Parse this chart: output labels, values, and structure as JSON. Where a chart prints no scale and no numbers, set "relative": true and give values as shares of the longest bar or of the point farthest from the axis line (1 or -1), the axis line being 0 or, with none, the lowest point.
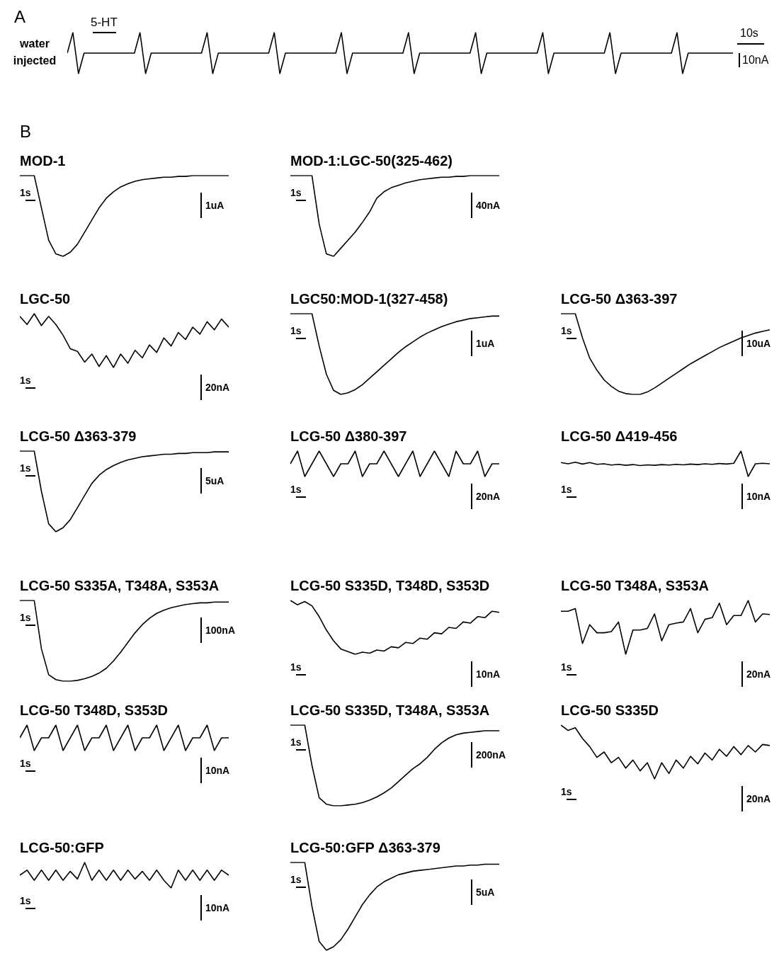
{
  "chart_data": [
    {
      "type": "line",
      "relative": true,
      "color": "#000000",
      "annotations": [
        "A",
        "water injected",
        "5-HT",
        "10s",
        "10nA"
      ],
      "categories": [
        null,
        null,
        null,
        null,
        null,
        null,
        null,
        null,
        null,
        null,
        null,
        null,
        null,
        null,
        null,
        null,
        null,
        null,
        null,
        null,
        null,
        null,
        null,
        null,
        null,
        null,
        null,
        null,
        null,
        null,
        null,
        null,
        null,
        null,
        null,
        null,
        null,
        null,
        null,
        null,
        null,
        null,
        null,
        null,
        null,
        null,
        null,
        null,
        null,
        null,
        null,
        null,
        null,
        null,
        null,
        null,
        null,
        null,
        null,
        null,
        null,
        null,
        null,
        null,
        null,
        null,
        null,
        null,
        null,
        null,
        null,
        null,
        null,
        null,
        null,
        null,
        null,
        null,
        null,
        null,
        null,
        null,
        null,
        null,
        null,
        null,
        null,
        null,
        null,
        null,
        null,
        null,
        null,
        null,
        null,
        null,
        null,
        null,
        null,
        null,
        null,
        null,
        null,
        null,
        null,
        null,
        null,
        null,
        null,
        null,
        null,
        null,
        null,
        null,
        null,
        null,
        null,
        null,
        null,
        null
      ],
      "values": [
        0.5,
        1,
        0,
        0.5,
        0.5,
        0.5,
        0.5,
        0.5,
        0.5,
        0.5,
        0.5,
        0.5,
        0.5,
        1,
        0,
        0.5,
        0.5,
        0.5,
        0.5,
        0.5,
        0.5,
        0.5,
        0.5,
        0.5,
        0.5,
        1,
        0,
        0.5,
        0.5,
        0.5,
        0.5,
        0.5,
        0.5,
        0.5,
        0.5,
        0.5,
        0.5,
        1,
        0,
        0.5,
        0.5,
        0.5,
        0.5,
        0.5,
        0.5,
        0.5,
        0.5,
        0.5,
        0.5,
        1,
        0,
        0.5,
        0.5,
        0.5,
        0.5,
        0.5,
        0.5,
        0.5,
        0.5,
        0.5,
        0.5,
        1,
        0,
        0.5,
        0.5,
        0.5,
        0.5,
        0.5,
        0.5,
        0.5,
        0.5,
        0.5,
        0.5,
        1,
        0,
        0.5,
        0.5,
        0.5,
        0.5,
        0.5,
        0.5,
        0.5,
        0.5,
        0.5,
        0.5,
        1,
        0,
        0.5,
        0.5,
        0.5,
        0.5,
        0.5,
        0.5,
        0.5,
        0.5,
        0.5,
        0.5,
        1,
        0,
        0.5,
        0.5,
        0.5,
        0.5,
        0.5,
        0.5,
        0.5,
        0.5,
        0.5,
        0.5,
        1,
        0,
        0.5,
        0.5,
        0.5,
        0.5,
        0.5,
        0.5,
        0.5,
        0.5,
        0.5
      ]
    },
    {
      "type": "line",
      "relative": true,
      "color": "#000000",
      "title": "MOD-1",
      "annotations": [
        "1s",
        "1uA",
        "B"
      ],
      "categories": [
        null,
        null,
        null,
        null,
        null,
        null,
        null,
        null,
        null,
        null,
        null,
        null,
        null,
        null,
        null,
        null,
        null,
        null,
        null,
        null,
        null,
        null,
        null,
        null,
        null,
        null,
        null,
        null,
        null,
        null
      ],
      "values": [
        1,
        1,
        1,
        0.6,
        0.2,
        0.03,
        0,
        0.05,
        0.15,
        0.3,
        0.45,
        0.6,
        0.72,
        0.8,
        0.86,
        0.9,
        0.93,
        0.95,
        0.96,
        0.97,
        0.98,
        0.98,
        0.99,
        0.99,
        1,
        1,
        1,
        1,
        1,
        1
      ]
    },
    {
      "type": "line",
      "relative": true,
      "color": "#000000",
      "title": "MOD-1:LGC-50(325-462)",
      "annotations": [
        "1s",
        "40nA"
      ],
      "categories": [
        null,
        null,
        null,
        null,
        null,
        null,
        null,
        null,
        null,
        null,
        null,
        null,
        null,
        null,
        null,
        null,
        null,
        null,
        null,
        null,
        null,
        null,
        null,
        null,
        null,
        null,
        null,
        null,
        null,
        null
      ],
      "values": [
        1,
        1,
        1,
        1,
        0.4,
        0.03,
        0,
        0.1,
        0.2,
        0.3,
        0.42,
        0.55,
        0.72,
        0.8,
        0.85,
        0.88,
        0.91,
        0.93,
        0.95,
        0.96,
        0.97,
        0.98,
        0.98,
        0.99,
        0.99,
        1,
        1,
        1,
        1,
        1
      ]
    },
    {
      "type": "line",
      "relative": true,
      "color": "#000000",
      "title": "LGC-50",
      "annotations": [
        "1s",
        "20nA"
      ],
      "categories": [
        null,
        null,
        null,
        null,
        null,
        null,
        null,
        null,
        null,
        null,
        null,
        null,
        null,
        null,
        null,
        null,
        null,
        null,
        null,
        null,
        null,
        null,
        null,
        null,
        null,
        null,
        null,
        null,
        null,
        null
      ],
      "values": [
        0.95,
        0.8,
        1,
        0.78,
        0.95,
        0.8,
        0.6,
        0.35,
        0.3,
        0.1,
        0.25,
        0.02,
        0.22,
        0,
        0.25,
        0.08,
        0.32,
        0.18,
        0.42,
        0.28,
        0.55,
        0.4,
        0.65,
        0.52,
        0.75,
        0.62,
        0.85,
        0.7,
        0.9,
        0.75
      ]
    },
    {
      "type": "line",
      "relative": true,
      "color": "#000000",
      "title": "LGC50:MOD-1(327-458)",
      "annotations": [
        "1s",
        "1uA"
      ],
      "categories": [
        null,
        null,
        null,
        null,
        null,
        null,
        null,
        null,
        null,
        null,
        null,
        null,
        null,
        null,
        null,
        null,
        null,
        null,
        null,
        null,
        null,
        null,
        null,
        null,
        null,
        null,
        null,
        null,
        null,
        null
      ],
      "values": [
        1,
        1,
        1,
        1,
        0.6,
        0.25,
        0.05,
        0,
        0.02,
        0.06,
        0.12,
        0.2,
        0.28,
        0.36,
        0.44,
        0.52,
        0.59,
        0.65,
        0.71,
        0.76,
        0.8,
        0.84,
        0.87,
        0.9,
        0.92,
        0.94,
        0.95,
        0.96,
        0.97,
        0.97
      ]
    },
    {
      "type": "line",
      "relative": true,
      "color": "#000000",
      "title": "LCG-50 Δ363-397",
      "annotations": [
        "1s",
        "10uA"
      ],
      "categories": [
        null,
        null,
        null,
        null,
        null,
        null,
        null,
        null,
        null,
        null,
        null,
        null,
        null,
        null,
        null,
        null,
        null,
        null,
        null,
        null,
        null,
        null,
        null,
        null,
        null,
        null,
        null,
        null,
        null,
        null
      ],
      "values": [
        1,
        1,
        1,
        0.7,
        0.45,
        0.3,
        0.18,
        0.1,
        0.04,
        0.01,
        0,
        0,
        0.03,
        0.08,
        0.14,
        0.2,
        0.26,
        0.32,
        0.38,
        0.43,
        0.48,
        0.53,
        0.58,
        0.62,
        0.66,
        0.7,
        0.73,
        0.76,
        0.78,
        0.8
      ]
    },
    {
      "type": "line",
      "relative": true,
      "color": "#000000",
      "title": "LCG-50 Δ363-379",
      "annotations": [
        "1s",
        "5uA"
      ],
      "categories": [
        null,
        null,
        null,
        null,
        null,
        null,
        null,
        null,
        null,
        null,
        null,
        null,
        null,
        null,
        null,
        null,
        null,
        null,
        null,
        null,
        null,
        null,
        null,
        null,
        null,
        null,
        null,
        null,
        null,
        null
      ],
      "values": [
        1,
        1,
        1,
        0.5,
        0.1,
        0,
        0.05,
        0.15,
        0.3,
        0.45,
        0.6,
        0.7,
        0.77,
        0.82,
        0.86,
        0.89,
        0.91,
        0.93,
        0.94,
        0.95,
        0.96,
        0.96,
        0.97,
        0.97,
        0.98,
        0.98,
        0.98,
        0.99,
        0.99,
        0.99
      ]
    },
    {
      "type": "line",
      "relative": true,
      "color": "#000000",
      "title": "LCG-50 Δ380-397",
      "annotations": [
        "1s",
        "20nA"
      ],
      "categories": [
        null,
        null,
        null,
        null,
        null,
        null,
        null,
        null,
        null,
        null,
        null,
        null,
        null,
        null,
        null,
        null,
        null,
        null,
        null,
        null,
        null,
        null,
        null,
        null,
        null,
        null,
        null,
        null,
        null,
        null
      ],
      "values": [
        0.5,
        1,
        0,
        0.5,
        1,
        0.5,
        0,
        0.5,
        0.5,
        1,
        0,
        0.5,
        0.5,
        1,
        0.5,
        0,
        0.5,
        1,
        0,
        0.5,
        1,
        0.5,
        0,
        1,
        0.5,
        0.5,
        1,
        0,
        0.5,
        0.5
      ]
    },
    {
      "type": "line",
      "relative": true,
      "color": "#000000",
      "title": "LCG-50 Δ419-456",
      "annotations": [
        "1s",
        "10nA"
      ],
      "categories": [
        null,
        null,
        null,
        null,
        null,
        null,
        null,
        null,
        null,
        null,
        null,
        null,
        null,
        null,
        null,
        null,
        null,
        null,
        null,
        null,
        null,
        null,
        null,
        null,
        null,
        null,
        null,
        null,
        null,
        null
      ],
      "values": [
        0.55,
        0.5,
        0.56,
        0.49,
        0.55,
        0.48,
        0.5,
        0.45,
        0.48,
        0.44,
        0.47,
        0.43,
        0.46,
        0.44,
        0.47,
        0.45,
        0.48,
        0.46,
        0.49,
        0.47,
        0.5,
        0.48,
        0.51,
        0.49,
        0.52,
        1,
        0,
        0.5,
        0.52,
        0.5
      ]
    },
    {
      "type": "line",
      "relative": true,
      "color": "#000000",
      "title": "LCG-50 S335A, T348A, S353A",
      "annotations": [
        "1s",
        "100nA"
      ],
      "categories": [
        null,
        null,
        null,
        null,
        null,
        null,
        null,
        null,
        null,
        null,
        null,
        null,
        null,
        null,
        null,
        null,
        null,
        null,
        null,
        null,
        null,
        null,
        null,
        null,
        null,
        null,
        null,
        null,
        null,
        null
      ],
      "values": [
        1,
        1,
        1,
        0.4,
        0.08,
        0.02,
        0,
        0,
        0.01,
        0.03,
        0.06,
        0.1,
        0.16,
        0.25,
        0.36,
        0.48,
        0.6,
        0.7,
        0.78,
        0.84,
        0.88,
        0.91,
        0.93,
        0.95,
        0.96,
        0.97,
        0.97,
        0.98,
        0.98,
        0.98
      ]
    },
    {
      "type": "line",
      "relative": true,
      "color": "#000000",
      "title": "LCG-50 S335D, T348D, S353D",
      "annotations": [
        "1s",
        "10nA"
      ],
      "categories": [
        null,
        null,
        null,
        null,
        null,
        null,
        null,
        null,
        null,
        null,
        null,
        null,
        null,
        null,
        null,
        null,
        null,
        null,
        null,
        null,
        null,
        null,
        null,
        null,
        null,
        null,
        null,
        null,
        null,
        null
      ],
      "values": [
        1,
        0.92,
        0.98,
        0.9,
        0.7,
        0.45,
        0.25,
        0.1,
        0.05,
        0,
        0.04,
        0.02,
        0.08,
        0.06,
        0.14,
        0.12,
        0.22,
        0.2,
        0.3,
        0.28,
        0.4,
        0.38,
        0.5,
        0.48,
        0.6,
        0.58,
        0.7,
        0.68,
        0.8,
        0.78
      ]
    },
    {
      "type": "line",
      "relative": true,
      "color": "#000000",
      "title": "LCG-50 T348A, S353A",
      "annotations": [
        "1s",
        "20nA"
      ],
      "categories": [
        null,
        null,
        null,
        null,
        null,
        null,
        null,
        null,
        null,
        null,
        null,
        null,
        null,
        null,
        null,
        null,
        null,
        null,
        null,
        null,
        null,
        null,
        null,
        null,
        null,
        null,
        null,
        null,
        null,
        null
      ],
      "values": [
        0.8,
        0.8,
        0.85,
        0.2,
        0.55,
        0.4,
        0.4,
        0.42,
        0.6,
        0,
        0.45,
        0.45,
        0.48,
        0.75,
        0.25,
        0.55,
        0.58,
        0.6,
        0.85,
        0.4,
        0.65,
        0.68,
        0.95,
        0.55,
        0.72,
        0.72,
        1,
        0.6,
        0.75,
        0.74
      ]
    },
    {
      "type": "line",
      "relative": true,
      "color": "#000000",
      "title": "LCG-50 T348D, S353D",
      "annotations": [
        "1s",
        "10nA"
      ],
      "categories": [
        null,
        null,
        null,
        null,
        null,
        null,
        null,
        null,
        null,
        null,
        null,
        null,
        null,
        null,
        null,
        null,
        null,
        null,
        null,
        null,
        null,
        null,
        null,
        null,
        null,
        null,
        null,
        null,
        null,
        null
      ],
      "values": [
        0.5,
        1,
        0,
        0.5,
        0.5,
        1,
        0,
        0.5,
        1,
        0,
        0.5,
        0.5,
        1,
        0,
        0.5,
        1,
        0,
        0.5,
        0.5,
        1,
        0,
        0.5,
        1,
        0,
        0.5,
        0.5,
        1,
        0,
        0.5,
        0.5
      ]
    },
    {
      "type": "line",
      "relative": true,
      "color": "#000000",
      "title": "LCG-50 S335D, T348A, S353A",
      "annotations": [
        "1s",
        "200nA"
      ],
      "categories": [
        null,
        null,
        null,
        null,
        null,
        null,
        null,
        null,
        null,
        null,
        null,
        null,
        null,
        null,
        null,
        null,
        null,
        null,
        null,
        null,
        null,
        null,
        null,
        null,
        null,
        null,
        null,
        null,
        null,
        null
      ],
      "values": [
        1,
        1,
        1,
        0.5,
        0.1,
        0.02,
        0,
        0,
        0.01,
        0.02,
        0.04,
        0.07,
        0.11,
        0.16,
        0.22,
        0.3,
        0.38,
        0.46,
        0.52,
        0.6,
        0.7,
        0.78,
        0.84,
        0.88,
        0.9,
        0.91,
        0.92,
        0.93,
        0.93,
        0.93
      ]
    },
    {
      "type": "line",
      "relative": true,
      "color": "#000000",
      "title": "LCG-50 S335D",
      "annotations": [
        "1s",
        "20nA"
      ],
      "categories": [
        null,
        null,
        null,
        null,
        null,
        null,
        null,
        null,
        null,
        null,
        null,
        null,
        null,
        null,
        null,
        null,
        null,
        null,
        null,
        null,
        null,
        null,
        null,
        null,
        null,
        null,
        null,
        null,
        null,
        null
      ],
      "values": [
        1,
        0.9,
        0.95,
        0.75,
        0.6,
        0.4,
        0.5,
        0.3,
        0.4,
        0.2,
        0.35,
        0.15,
        0.3,
        0,
        0.3,
        0.1,
        0.35,
        0.2,
        0.42,
        0.28,
        0.48,
        0.35,
        0.55,
        0.42,
        0.6,
        0.45,
        0.62,
        0.5,
        0.64,
        0.62
      ]
    },
    {
      "type": "line",
      "relative": true,
      "color": "#000000",
      "title": "LCG-50:GFP",
      "annotations": [
        "1s",
        "10nA"
      ],
      "categories": [
        null,
        null,
        null,
        null,
        null,
        null,
        null,
        null,
        null,
        null,
        null,
        null,
        null,
        null,
        null,
        null,
        null,
        null,
        null,
        null,
        null,
        null,
        null,
        null,
        null,
        null,
        null,
        null,
        null,
        null
      ],
      "values": [
        0.5,
        0.7,
        0.3,
        0.7,
        0.3,
        0.7,
        0.3,
        0.65,
        0.35,
        1,
        0.3,
        0.7,
        0.3,
        0.7,
        0.3,
        0.7,
        0.35,
        0.65,
        0.3,
        0.7,
        0.3,
        0,
        0.7,
        0.3,
        0.7,
        0.3,
        0.7,
        0.3,
        0.7,
        0.5
      ]
    },
    {
      "type": "line",
      "relative": true,
      "color": "#000000",
      "title": "LCG-50:GFP Δ363-379",
      "annotations": [
        "1s",
        "5uA"
      ],
      "categories": [
        null,
        null,
        null,
        null,
        null,
        null,
        null,
        null,
        null,
        null,
        null,
        null,
        null,
        null,
        null,
        null,
        null,
        null,
        null,
        null,
        null,
        null,
        null,
        null,
        null,
        null,
        null,
        null,
        null,
        null
      ],
      "values": [
        1,
        1,
        1,
        0.5,
        0.1,
        0,
        0.04,
        0.12,
        0.24,
        0.38,
        0.52,
        0.63,
        0.72,
        0.78,
        0.82,
        0.86,
        0.88,
        0.9,
        0.91,
        0.92,
        0.93,
        0.94,
        0.95,
        0.96,
        0.96,
        0.97,
        0.97,
        0.98,
        0.98,
        0.98
      ]
    }
  ]
}
